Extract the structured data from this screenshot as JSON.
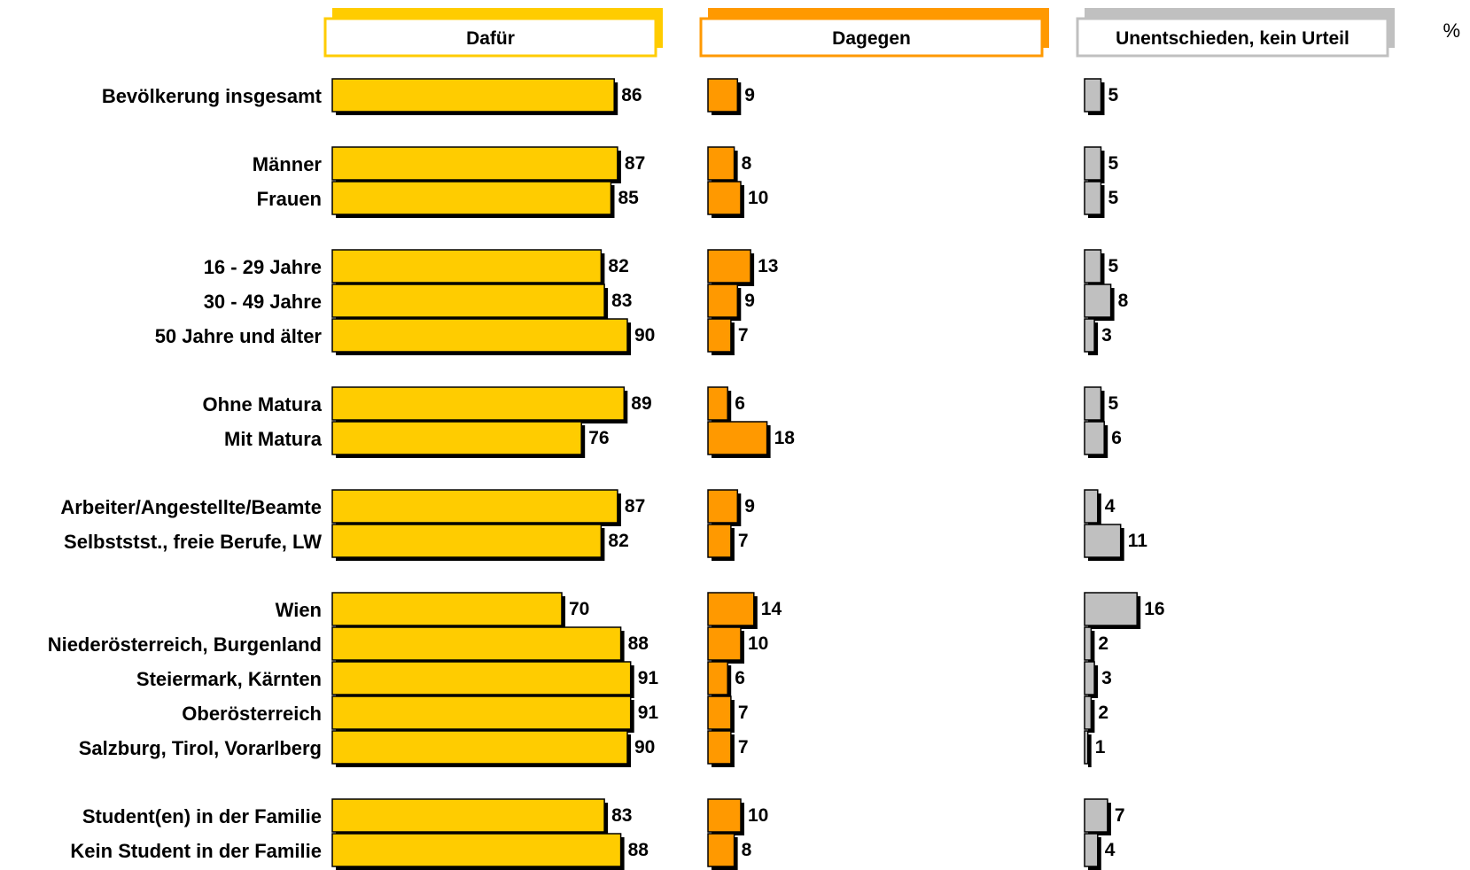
{
  "chart_data": {
    "type": "bar",
    "orientation": "horizontal",
    "unit": "%",
    "categories": [
      "Bevölkerung insgesamt",
      "Männer",
      "Frauen",
      "16 - 29 Jahre",
      "30 - 49 Jahre",
      "50 Jahre und älter",
      "Ohne Matura",
      "Mit Matura",
      "Arbeiter/Angestellte/Beamte",
      "Selbststst., freie Berufe, LW",
      "Wien",
      "Niederösterreich, Burgenland",
      "Steiermark, Kärnten",
      "Oberösterreich",
      "Salzburg, Tirol, Vorarlberg",
      "Student(en) in der Familie",
      "Kein Student in der Familie"
    ],
    "groups": [
      [
        0
      ],
      [
        1,
        2
      ],
      [
        3,
        4,
        5
      ],
      [
        6,
        7
      ],
      [
        8,
        9
      ],
      [
        10,
        11,
        12,
        13,
        14
      ],
      [
        15,
        16
      ]
    ],
    "series": [
      {
        "name": "Dafür",
        "color": "#ffcc00",
        "values": [
          86,
          87,
          85,
          82,
          83,
          90,
          89,
          76,
          87,
          82,
          70,
          88,
          91,
          91,
          90,
          83,
          88
        ]
      },
      {
        "name": "Dagegen",
        "color": "#ff9900",
        "values": [
          9,
          8,
          10,
          13,
          9,
          7,
          6,
          18,
          9,
          7,
          14,
          10,
          6,
          7,
          7,
          10,
          8
        ]
      },
      {
        "name": "Unentschieden, kein Urteil",
        "color": "#c0c0c0",
        "values": [
          5,
          5,
          5,
          5,
          8,
          3,
          5,
          6,
          4,
          11,
          16,
          2,
          3,
          2,
          1,
          7,
          4
        ]
      }
    ],
    "legend": "top",
    "grid": false
  }
}
